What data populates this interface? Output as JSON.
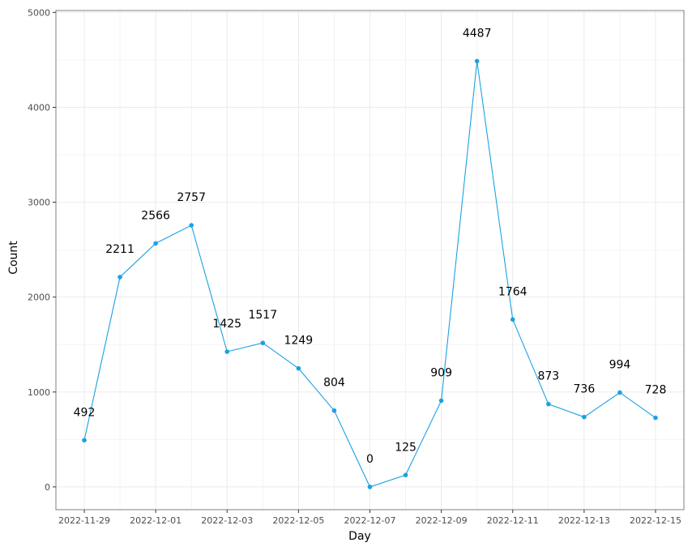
{
  "chart_data": {
    "type": "line",
    "title": "",
    "xlabel": "Day",
    "ylabel": "Count",
    "x": [
      "2022-11-29",
      "2022-11-30",
      "2022-12-01",
      "2022-12-02",
      "2022-12-03",
      "2022-12-04",
      "2022-12-05",
      "2022-12-06",
      "2022-12-07",
      "2022-12-08",
      "2022-12-09",
      "2022-12-10",
      "2022-12-11",
      "2022-12-12",
      "2022-12-13",
      "2022-12-14",
      "2022-12-15"
    ],
    "series": [
      {
        "values": [
          492,
          2211,
          2566,
          2757,
          1425,
          1517,
          1249,
          804,
          0,
          125,
          909,
          4487,
          1764,
          873,
          736,
          994,
          728
        ]
      }
    ],
    "data_labels": [
      "492",
      "2211",
      "2566",
      "2757",
      "1425",
      "1517",
      "1249",
      "804",
      "0",
      "125",
      "909",
      "4487",
      "1764",
      "873",
      "736",
      "994",
      "728"
    ],
    "x_ticks": [
      "2022-11-29",
      "2022-12-01",
      "2022-12-03",
      "2022-12-05",
      "2022-12-07",
      "2022-12-09",
      "2022-12-11",
      "2022-12-13",
      "2022-12-15"
    ],
    "y_ticks": [
      "0",
      "1000",
      "2000",
      "3000",
      "4000",
      "5000"
    ],
    "ylim": [
      -240,
      5020
    ],
    "grid": true,
    "legend": "none",
    "colors": {
      "line": "#1ba1e2",
      "grid": "#ebebeb",
      "panel_border": "#7f7f7f",
      "tick_text": "#4d4d4d"
    }
  }
}
